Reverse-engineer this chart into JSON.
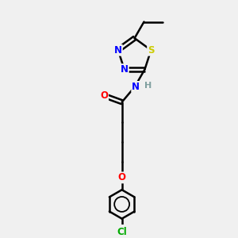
{
  "background_color": "#f0f0f0",
  "atom_colors": {
    "C": "#000000",
    "H": "#7f9f9f",
    "N": "#0000ff",
    "O": "#ff0000",
    "S": "#cccc00",
    "Cl": "#00aa00"
  },
  "figsize": [
    3.0,
    3.0
  ],
  "dpi": 100
}
